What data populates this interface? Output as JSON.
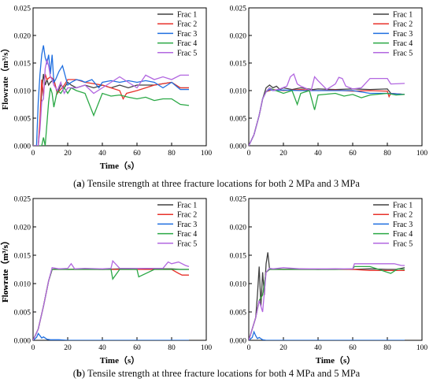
{
  "colors": {
    "Frac 1": "#404040",
    "Frac 2": "#e8322b",
    "Frac 3": "#1f6fe0",
    "Frac 4": "#2aa845",
    "Frac 5": "#b267e0",
    "axis": "#000000"
  },
  "captions": {
    "a_tag": "a",
    "a_text": "Tensile strength at three fracture locations for both 2 MPa and 3 MPa",
    "b_tag": "b",
    "b_text": "Tensile strength at three fracture locations for both 4 MPa and 5 MPa"
  },
  "chart_data": [
    {
      "type": "line",
      "xlabel": "Time（s）",
      "ylabel": "Flowrate（m³/s）",
      "xlim": [
        0,
        100
      ],
      "ylim": [
        0,
        0.025
      ],
      "xticks": [
        0,
        20,
        40,
        60,
        80,
        100
      ],
      "yticks": [
        0.0,
        0.005,
        0.01,
        0.015,
        0.02,
        0.025
      ],
      "legend_position": "top-right",
      "series": [
        {
          "name": "Frac 1",
          "x": [
            0,
            3,
            4,
            5,
            6,
            7,
            8,
            9,
            10,
            12,
            14,
            16,
            18,
            20,
            22,
            25,
            30,
            35,
            40,
            45,
            50,
            55,
            60,
            70,
            80,
            85,
            90
          ],
          "y": [
            0,
            0,
            0.004,
            0.01,
            0.013,
            0.011,
            0.012,
            0.011,
            0.0115,
            0.012,
            0.0095,
            0.011,
            0.0105,
            0.0115,
            0.011,
            0.0105,
            0.011,
            0.0105,
            0.011,
            0.0105,
            0.011,
            0.0105,
            0.011,
            0.011,
            0.0115,
            0.0105,
            0.0105
          ]
        },
        {
          "name": "Frac 2",
          "x": [
            0,
            3,
            4,
            5,
            6,
            7,
            8,
            10,
            12,
            14,
            18,
            20,
            25,
            30,
            40,
            50,
            52,
            54,
            60,
            70,
            80,
            85,
            90
          ],
          "y": [
            0,
            0,
            0.005,
            0.012,
            0.009,
            0.013,
            0.012,
            0.0125,
            0.012,
            0.0095,
            0.011,
            0.012,
            0.012,
            0.0115,
            0.011,
            0.01,
            0.0085,
            0.0095,
            0.01,
            0.011,
            0.0115,
            0.0105,
            0.0105
          ]
        },
        {
          "name": "Frac 3",
          "x": [
            0,
            2,
            3,
            4,
            5,
            6,
            7,
            8,
            9,
            10,
            11,
            12,
            13,
            15,
            17,
            20,
            22,
            25,
            28,
            30,
            34,
            38,
            40,
            45,
            50,
            55,
            60,
            65,
            70,
            75,
            80,
            85,
            90
          ],
          "y": [
            0,
            0,
            0.008,
            0.013,
            0.0165,
            0.0182,
            0.016,
            0.015,
            0.0165,
            0.013,
            0.0165,
            0.0115,
            0.012,
            0.0135,
            0.0145,
            0.011,
            0.0115,
            0.012,
            0.0118,
            0.0115,
            0.012,
            0.0105,
            0.0115,
            0.0118,
            0.0115,
            0.0118,
            0.0115,
            0.0118,
            0.0115,
            0.0105,
            0.0115,
            0.0102,
            0.0102
          ]
        },
        {
          "name": "Frac 4",
          "x": [
            0,
            5,
            6,
            7,
            8,
            9,
            10,
            11,
            12,
            14,
            16,
            18,
            20,
            22,
            25,
            30,
            35,
            40,
            45,
            50,
            55,
            60,
            65,
            70,
            75,
            80,
            85,
            90
          ],
          "y": [
            0,
            0,
            0.0015,
            0,
            0.004,
            0.008,
            0.0105,
            0.0095,
            0.007,
            0.01,
            0.0095,
            0.0105,
            0.0095,
            0.0105,
            0.01,
            0.0095,
            0.0055,
            0.0095,
            0.009,
            0.0092,
            0.0088,
            0.0085,
            0.0088,
            0.0082,
            0.0085,
            0.0085,
            0.0075,
            0.0073
          ]
        },
        {
          "name": "Frac 5",
          "x": [
            0,
            3,
            4,
            5,
            6,
            7,
            8,
            9,
            10,
            11,
            12,
            14,
            16,
            18,
            20,
            25,
            30,
            35,
            40,
            45,
            50,
            55,
            60,
            65,
            70,
            75,
            80,
            85,
            90
          ],
          "y": [
            0,
            0,
            0.003,
            0.008,
            0.0085,
            0.014,
            0.0155,
            0.0145,
            0.0125,
            0.012,
            0.011,
            0.01,
            0.0115,
            0.0095,
            0.0105,
            0.0105,
            0.011,
            0.0095,
            0.0105,
            0.0115,
            0.0125,
            0.0115,
            0.0105,
            0.0128,
            0.012,
            0.0125,
            0.012,
            0.0128,
            0.0128
          ]
        }
      ]
    },
    {
      "type": "line",
      "xlabel": "",
      "ylabel": "",
      "xlim": [
        0,
        100
      ],
      "ylim": [
        0,
        0.025
      ],
      "xticks": [
        0,
        20,
        40,
        60,
        80,
        100
      ],
      "yticks": [
        0.0,
        0.005,
        0.01,
        0.015,
        0.02,
        0.025
      ],
      "legend_position": "top-right",
      "series": [
        {
          "name": "Frac 1",
          "x": [
            0,
            3,
            6,
            8,
            10,
            12,
            14,
            16,
            18,
            20,
            25,
            30,
            37,
            40,
            50,
            60,
            70,
            80,
            82,
            90
          ],
          "y": [
            0,
            0.002,
            0.0055,
            0.0085,
            0.0105,
            0.011,
            0.0105,
            0.0108,
            0.0102,
            0.0105,
            0.0102,
            0.0105,
            0.0102,
            0.0103,
            0.0102,
            0.0103,
            0.0102,
            0.0103,
            0.0095,
            0.0093
          ]
        },
        {
          "name": "Frac 2",
          "x": [
            0,
            3,
            6,
            8,
            10,
            12,
            14,
            20,
            30,
            40,
            50,
            60,
            70,
            80,
            81,
            82,
            90
          ],
          "y": [
            0,
            0.002,
            0.0055,
            0.0085,
            0.0098,
            0.01,
            0.0102,
            0.01,
            0.0102,
            0.01,
            0.0101,
            0.0099,
            0.01,
            0.0099,
            0.0089,
            0.0095,
            0.0093
          ]
        },
        {
          "name": "Frac 3",
          "x": [
            0,
            3,
            6,
            8,
            10,
            12,
            14,
            20,
            30,
            40,
            50,
            60,
            70,
            80,
            90
          ],
          "y": [
            0,
            0.002,
            0.0055,
            0.0085,
            0.0098,
            0.0102,
            0.01,
            0.0101,
            0.01,
            0.01,
            0.01,
            0.01,
            0.0095,
            0.0095,
            0.0093
          ]
        },
        {
          "name": "Frac 4",
          "x": [
            0,
            3,
            6,
            8,
            10,
            12,
            14,
            20,
            25,
            28,
            30,
            35,
            38,
            40,
            50,
            55,
            60,
            65,
            70,
            80,
            85,
            90
          ],
          "y": [
            0,
            0.002,
            0.0055,
            0.0085,
            0.0098,
            0.0105,
            0.0102,
            0.0095,
            0.01,
            0.0075,
            0.0095,
            0.01,
            0.0065,
            0.0092,
            0.0095,
            0.009,
            0.0093,
            0.0087,
            0.0092,
            0.0095,
            0.0092,
            0.0093
          ]
        },
        {
          "name": "Frac 5",
          "x": [
            0,
            3,
            6,
            8,
            10,
            12,
            14,
            18,
            22,
            24,
            26,
            28,
            30,
            36,
            38,
            40,
            45,
            50,
            52,
            54,
            56,
            60,
            65,
            70,
            75,
            80,
            82,
            90
          ],
          "y": [
            0,
            0.002,
            0.0055,
            0.0085,
            0.0098,
            0.0105,
            0.01,
            0.0103,
            0.0108,
            0.0125,
            0.013,
            0.0112,
            0.0108,
            0.01,
            0.0125,
            0.0118,
            0.0102,
            0.0112,
            0.0124,
            0.0122,
            0.0108,
            0.0103,
            0.0105,
            0.0122,
            0.0122,
            0.0122,
            0.0112,
            0.0113
          ]
        }
      ]
    },
    {
      "type": "line",
      "xlabel": "Time（s）",
      "ylabel": "Flowrate（m³/s）",
      "xlim": [
        0,
        100
      ],
      "ylim": [
        0,
        0.025
      ],
      "xticks": [
        0,
        20,
        40,
        60,
        80,
        100
      ],
      "yticks": [
        0.0,
        0.005,
        0.01,
        0.015,
        0.02,
        0.025
      ],
      "legend_position": "top-right",
      "series": [
        {
          "name": "Frac 1",
          "x": [
            0,
            3,
            6,
            9,
            11,
            15,
            20,
            30,
            40,
            50,
            60,
            70,
            80,
            85,
            90
          ],
          "y": [
            0,
            0.002,
            0.006,
            0.0105,
            0.0125,
            0.0126,
            0.0125,
            0.0126,
            0.0125,
            0.0126,
            0.0125,
            0.0126,
            0.0126,
            0.0125,
            0.0125
          ]
        },
        {
          "name": "Frac 2",
          "x": [
            0,
            3,
            6,
            9,
            11,
            15,
            20,
            30,
            40,
            50,
            60,
            70,
            80,
            84,
            86,
            90
          ],
          "y": [
            0,
            0.002,
            0.006,
            0.0105,
            0.0125,
            0.0125,
            0.0125,
            0.0125,
            0.0125,
            0.0125,
            0.0125,
            0.0125,
            0.0125,
            0.0118,
            0.0115,
            0.0115
          ]
        },
        {
          "name": "Frac 3",
          "x": [
            0,
            2,
            3,
            4,
            5,
            6,
            8,
            10,
            15,
            20,
            40,
            60,
            80,
            90
          ],
          "y": [
            0,
            0.0005,
            0.0012,
            0.0008,
            0.0004,
            0.0006,
            0.0002,
            0.0001,
            0.0001,
            0,
            0,
            0,
            0,
            0
          ]
        },
        {
          "name": "Frac 4",
          "x": [
            0,
            3,
            6,
            9,
            11,
            15,
            20,
            30,
            40,
            45,
            46,
            50,
            60,
            61,
            70,
            80,
            86,
            90
          ],
          "y": [
            0,
            0.002,
            0.006,
            0.0105,
            0.0125,
            0.0125,
            0.0125,
            0.0125,
            0.0125,
            0.0125,
            0.0108,
            0.0125,
            0.0125,
            0.0112,
            0.0125,
            0.0125,
            0.0125,
            0.0125
          ]
        },
        {
          "name": "Frac 5",
          "x": [
            0,
            3,
            6,
            9,
            11,
            15,
            20,
            22,
            24,
            30,
            40,
            45,
            46,
            50,
            60,
            70,
            75,
            78,
            80,
            84,
            88,
            90
          ],
          "y": [
            0,
            0.002,
            0.006,
            0.0105,
            0.0128,
            0.0126,
            0.0127,
            0.0135,
            0.0126,
            0.0127,
            0.0126,
            0.0127,
            0.014,
            0.0127,
            0.0127,
            0.0127,
            0.0127,
            0.0138,
            0.0135,
            0.0138,
            0.0132,
            0.013
          ]
        }
      ]
    },
    {
      "type": "line",
      "xlabel": "Time（s）",
      "ylabel": "Flowrate（m³/s）",
      "xlim": [
        0,
        100
      ],
      "ylim": [
        0,
        0.025
      ],
      "xticks": [
        0,
        20,
        40,
        60,
        80,
        100
      ],
      "yticks": [
        0.0,
        0.005,
        0.01,
        0.015,
        0.02,
        0.025
      ],
      "legend_position": "top-right",
      "series": [
        {
          "name": "Frac 1",
          "x": [
            0,
            4,
            5,
            6,
            7,
            8,
            9,
            10,
            11,
            12,
            14,
            20,
            30,
            40,
            50,
            60,
            70,
            80,
            85,
            90
          ],
          "y": [
            0,
            0.004,
            0.008,
            0.013,
            0.006,
            0.012,
            0.008,
            0.0135,
            0.0155,
            0.0125,
            0.0126,
            0.0125,
            0.0126,
            0.0125,
            0.0126,
            0.0125,
            0.0126,
            0.0125,
            0.0125,
            0.0128
          ]
        },
        {
          "name": "Frac 2",
          "x": [
            0,
            4,
            6,
            8,
            10,
            12,
            20,
            30,
            40,
            50,
            60,
            70,
            80,
            90
          ],
          "y": [
            0,
            0.004,
            0.007,
            0.008,
            0.012,
            0.0125,
            0.0125,
            0.0125,
            0.0125,
            0.0125,
            0.0125,
            0.0123,
            0.0123,
            0.0123
          ]
        },
        {
          "name": "Frac 3",
          "x": [
            0,
            2,
            3,
            4,
            5,
            6,
            8,
            10,
            20,
            40,
            60,
            80,
            90
          ],
          "y": [
            0,
            0.0005,
            0.0015,
            0.0008,
            0.0003,
            0.0005,
            0.0001,
            0,
            0,
            0,
            0,
            0,
            0
          ]
        },
        {
          "name": "Frac 4",
          "x": [
            0,
            4,
            6,
            8,
            10,
            12,
            20,
            30,
            40,
            50,
            60,
            61,
            70,
            80,
            82,
            86,
            90
          ],
          "y": [
            0,
            0.004,
            0.007,
            0.008,
            0.012,
            0.0125,
            0.0125,
            0.0125,
            0.0125,
            0.0125,
            0.0126,
            0.013,
            0.013,
            0.012,
            0.0118,
            0.0126,
            0.0125
          ]
        },
        {
          "name": "Frac 5",
          "x": [
            0,
            4,
            6,
            8,
            10,
            12,
            14,
            20,
            30,
            40,
            50,
            60,
            61,
            70,
            80,
            84,
            88,
            90
          ],
          "y": [
            0,
            0.004,
            0.007,
            0.005,
            0.012,
            0.0127,
            0.0126,
            0.0128,
            0.0126,
            0.0126,
            0.0126,
            0.0126,
            0.0135,
            0.0135,
            0.0135,
            0.0135,
            0.0132,
            0.0132
          ]
        }
      ]
    }
  ]
}
